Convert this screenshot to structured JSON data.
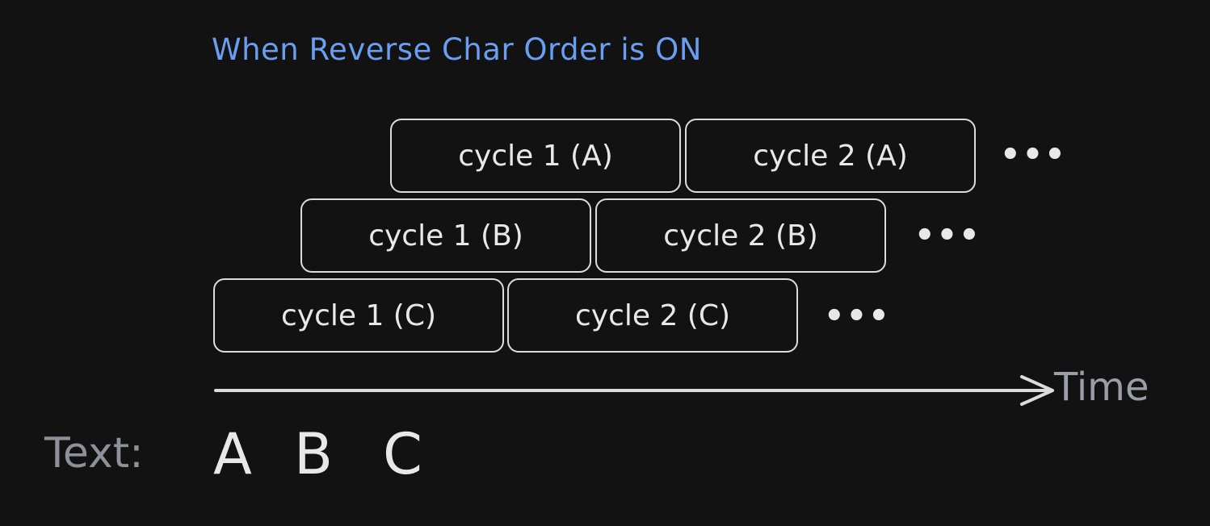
{
  "title": "When Reverse Char Order is ON",
  "rows": [
    {
      "cycles": [
        "cycle 1 (A)",
        "cycle 2 (A)"
      ],
      "more": "•••"
    },
    {
      "cycles": [
        "cycle 1 (B)",
        "cycle 2 (B)"
      ],
      "more": "•••"
    },
    {
      "cycles": [
        "cycle 1 (C)",
        "cycle 2 (C)"
      ],
      "more": "•••"
    }
  ],
  "axis": {
    "label": "Time"
  },
  "text": {
    "label": "Text:",
    "chars": [
      "A",
      "B",
      "C"
    ]
  },
  "colors": {
    "background": "#121212",
    "title": "#6a9ef0",
    "box_stroke": "#dcdcdc",
    "box_text": "#e8e8e8",
    "muted_label": "#9a9ea6"
  }
}
